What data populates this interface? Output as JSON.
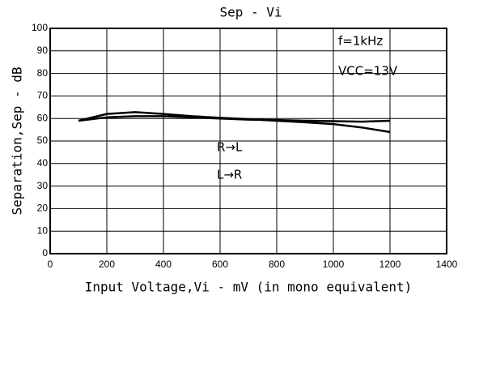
{
  "chart_data": {
    "type": "line",
    "title": "Sep - Vi",
    "xlabel": "Input Voltage,Vi - mV (in mono equivalent)",
    "ylabel": "Separation,Sep - dB",
    "annotations": [
      "f=1kHz",
      "VCC=13V"
    ],
    "x": [
      100,
      200,
      300,
      400,
      500,
      600,
      700,
      800,
      900,
      1000,
      1100,
      1200
    ],
    "series": [
      {
        "name": "R→L",
        "color": "#000000",
        "values": [
          59,
          62,
          62.8,
          62,
          61,
          60.3,
          59.7,
          59,
          58.3,
          57.5,
          56,
          54
        ]
      },
      {
        "name": "L→R",
        "color": "#000000",
        "values": [
          59,
          60.5,
          61,
          61,
          60.5,
          60,
          59.5,
          59.3,
          59,
          58.8,
          58.6,
          59
        ]
      }
    ],
    "xlim": [
      0,
      1400
    ],
    "xticks": [
      0,
      200,
      400,
      600,
      800,
      1000,
      1200,
      1400
    ],
    "ylim": [
      0,
      100
    ],
    "yticks": [
      0,
      10,
      20,
      30,
      40,
      50,
      60,
      70,
      80,
      90,
      100
    ],
    "grid": true
  }
}
